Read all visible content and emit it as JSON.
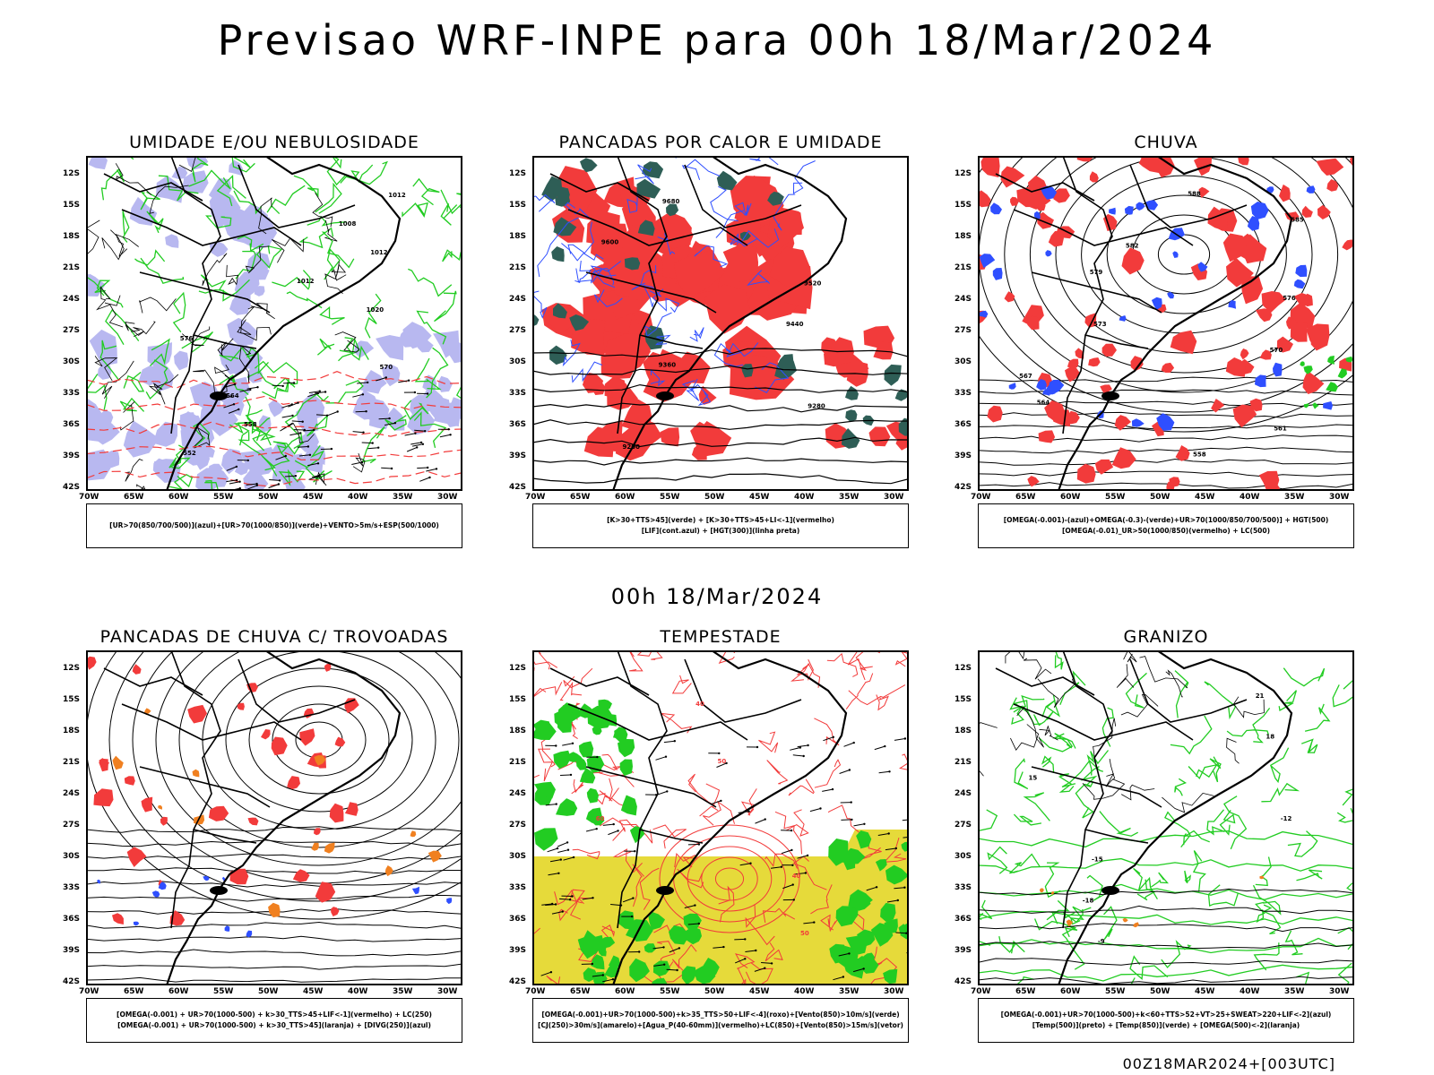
{
  "main_title": "Previsao WRF-INPE  para 00h 18/Mar/2024",
  "mid_title": "00h 18/Mar/2024",
  "footer": "00Z18MAR2024+[003UTC]",
  "lat_labels": [
    "12S",
    "15S",
    "18S",
    "21S",
    "24S",
    "27S",
    "30S",
    "33S",
    "36S",
    "39S",
    "42S"
  ],
  "lon_labels": [
    "70W",
    "65W",
    "60W",
    "55W",
    "50W",
    "45W",
    "40W",
    "35W",
    "30W"
  ],
  "panels": [
    {
      "title": "UMIDADE E/OU NEBULOSIDADE",
      "legend": [
        "[UR>70(850/700/500)](azul)+[UR>70(1000/850)](verde)+VENTO>5m/s+ESP(500/1000)"
      ],
      "contour_labels": [
        "1012",
        "1008",
        "1012",
        "1012",
        "1020",
        "576",
        "570",
        "564",
        "558",
        "552"
      ]
    },
    {
      "title": "PANCADAS POR CALOR E UMIDADE",
      "legend": [
        "[K>30+TTS>45](verde) + [K>30+TTS>45+LI<-1](vermelho)",
        "[LIF](cont.azul) + [HGT(300)](linha preta)"
      ],
      "contour_labels": [
        "9680",
        "9600",
        "9520",
        "9440",
        "9360",
        "9280",
        "9200"
      ]
    },
    {
      "title": "CHUVA",
      "legend": [
        "[OMEGA(-0.001)-(azul)+OMEGA(-0.3)-(verde)+UR>70(1000/850/700/500)] + HGT(500)",
        "[OMEGA(-0.01)_UR>50(1000/850)(vermelho) + LC(500)"
      ],
      "contour_labels": [
        "588",
        "585",
        "582",
        "579",
        "576",
        "573",
        "570",
        "567",
        "564",
        "561",
        "558"
      ]
    },
    {
      "title": "PANCADAS DE CHUVA C/ TROVOADAS",
      "legend": [
        "[OMEGA(-0.001) + UR>70(1000-500) + k>30_TTS>45+LIF<-1](vermelho) + LC(250)",
        "[OMEGA(-0.001) + UR>70(1000-500) + k>30_TTS>45](laranja) + [DIVG(250)](azul)"
      ],
      "contour_labels": []
    },
    {
      "title": "TEMPESTADE",
      "legend": [
        "[OMEGA(-0.001)+UR>70(1000-500)+k>35_TTS>50+LIF<-4](roxo)+[Vento(850)>10m/s](verde)",
        "[CJ(250)>30m/s](amarelo)+[Agua_P(40-60mm)](vermelho)+LC(850)+[Vento(850)>15m/s](vetor)"
      ],
      "contour_labels": [
        "40",
        "50",
        "60",
        "40",
        "50"
      ]
    },
    {
      "title": "GRANIZO",
      "legend": [
        "[OMEGA(-0.001)+UR>70(1000-500)+k<60+TTS>52+VT>25+SWEAT>220+LIF<-2](azul)",
        "[Temp(500)](preto) + [Temp(850)](verde) + [OMEGA(500)<-2](laranja)"
      ],
      "contour_labels": [
        "21",
        "18",
        "15",
        "-12",
        "-15",
        "-18",
        "-9"
      ]
    }
  ],
  "colors": {
    "red": "#f23b3b",
    "green": "#22cc22",
    "blue": "#2f4fff",
    "lavender": "#b8b8f0",
    "yellow": "#e6da3a",
    "darkteal": "#2e5e56",
    "orange": "#f08020"
  }
}
